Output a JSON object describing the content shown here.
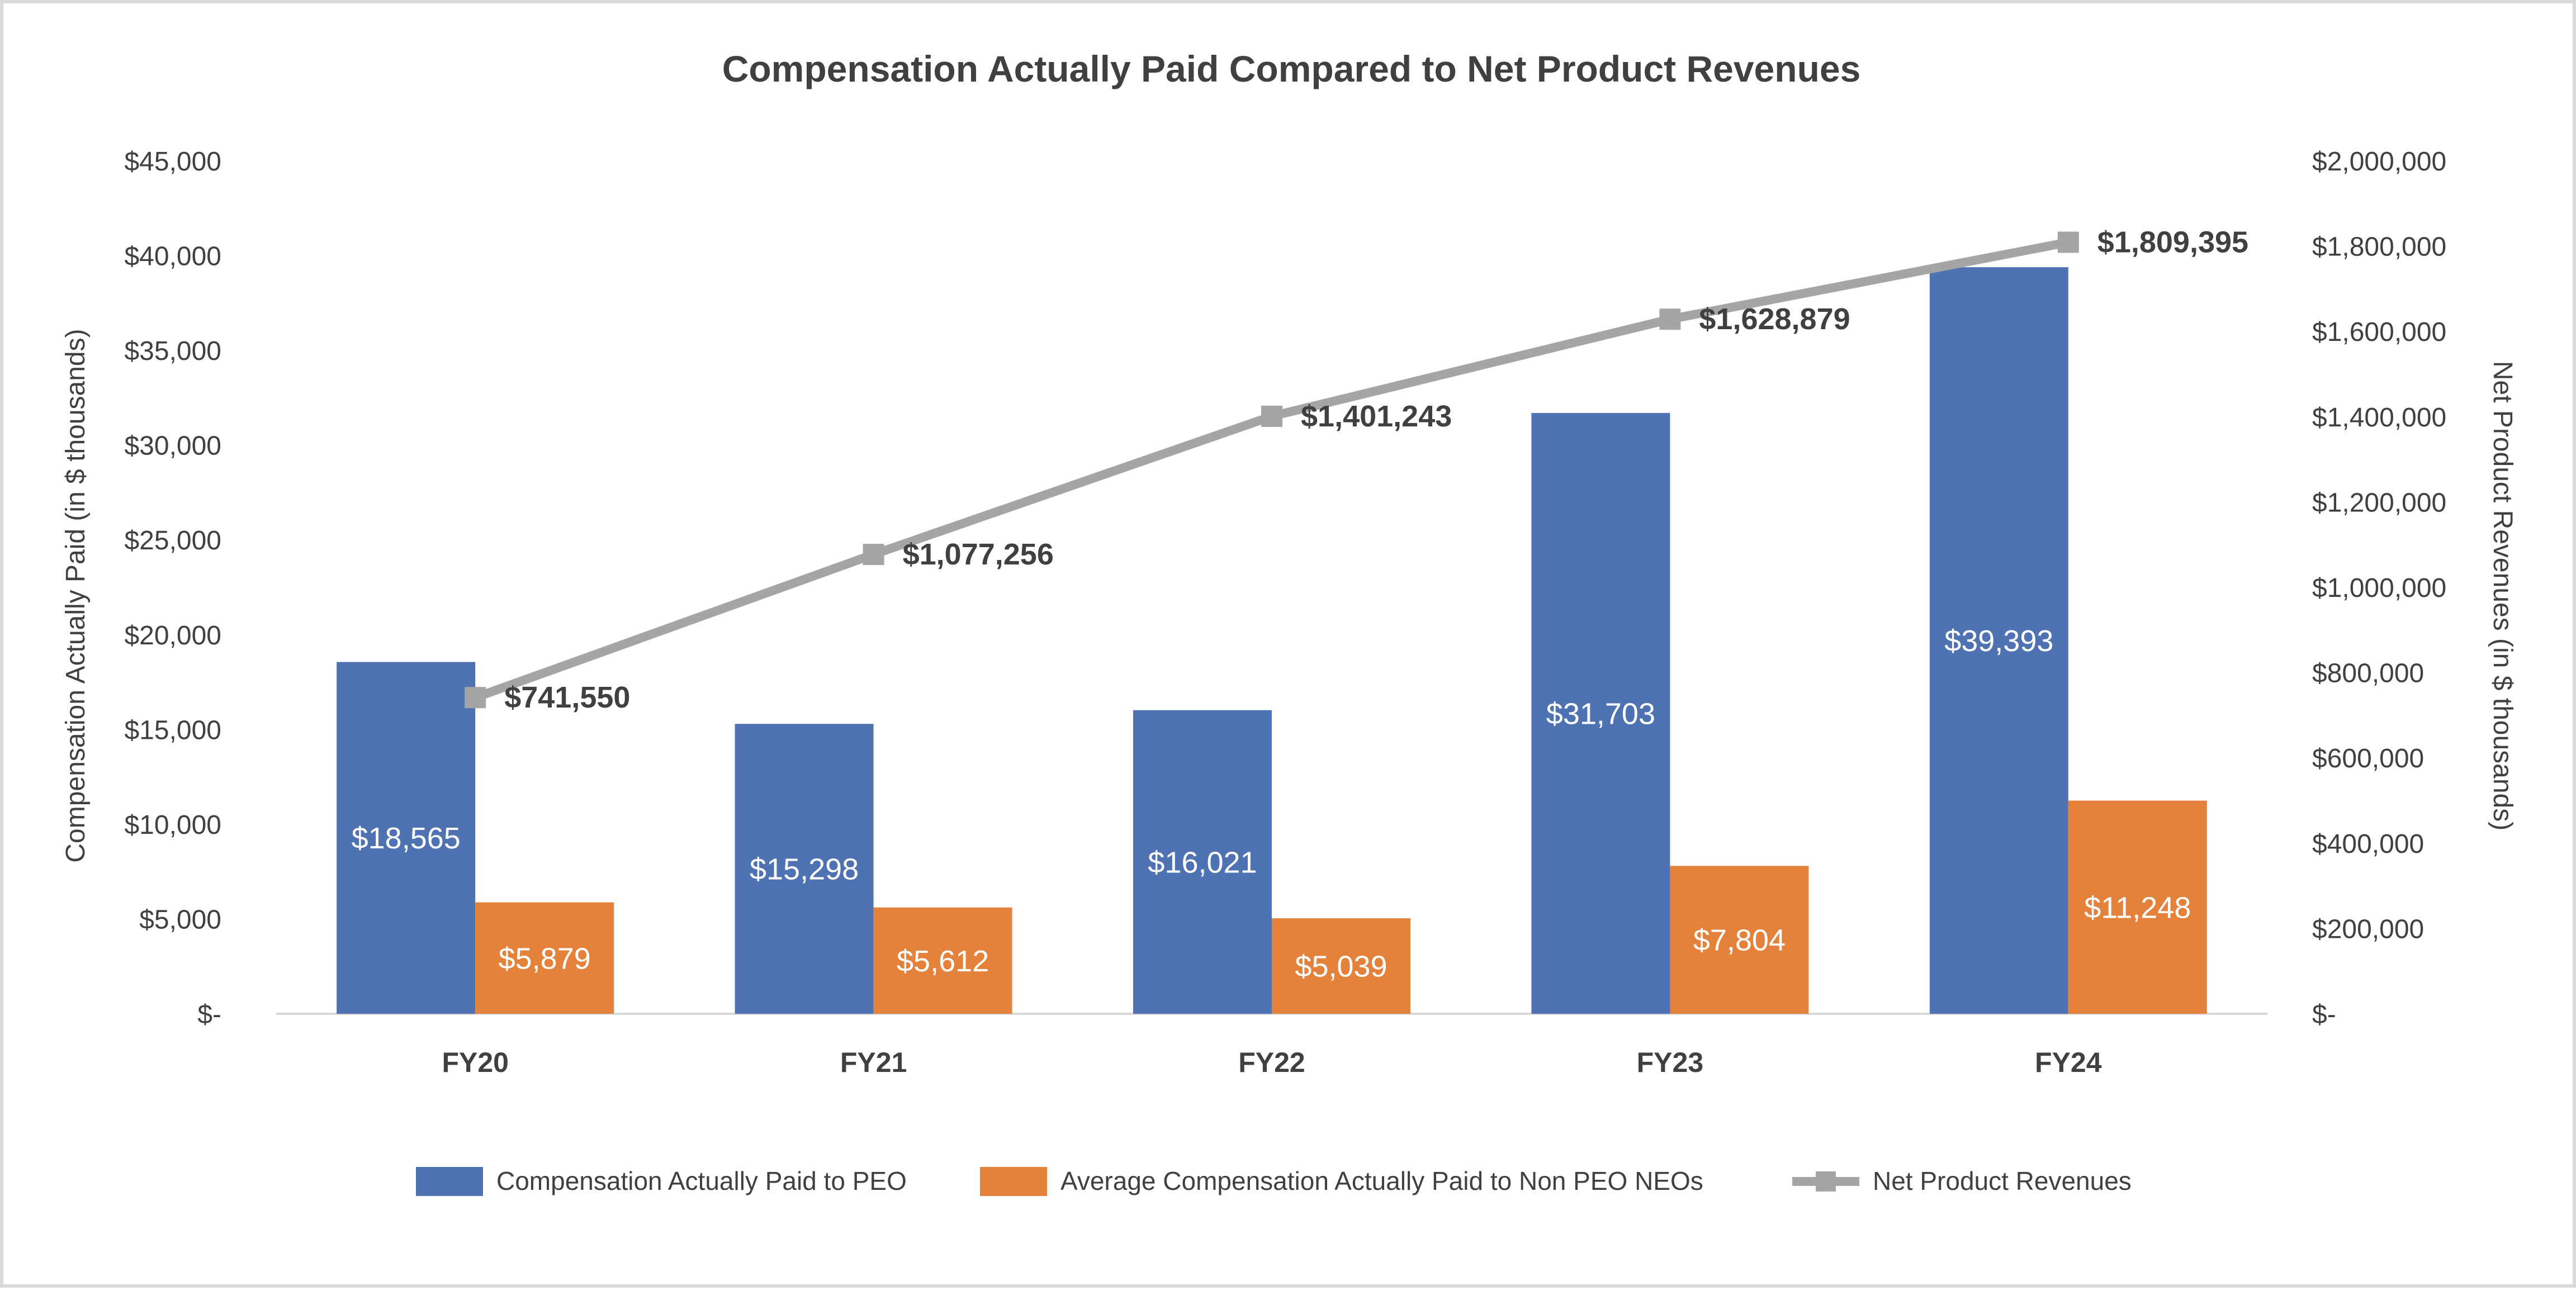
{
  "chart_data": {
    "type": "bar",
    "title": "Compensation Actually Paid Compared to Net Product Revenues",
    "categories": [
      "FY20",
      "FY21",
      "FY22",
      "FY23",
      "FY24"
    ],
    "series": [
      {
        "name": "Compensation Actually Paid to PEO",
        "kind": "bar",
        "axis": "left",
        "color": "#4F72B2",
        "values": [
          18565,
          15298,
          16021,
          31703,
          39393
        ],
        "labels": [
          "$18,565",
          "$15,298",
          "$16,021",
          "$31,703",
          "$39,393"
        ]
      },
      {
        "name": "Average Compensation Actually Paid to Non PEO NEOs",
        "kind": "bar",
        "axis": "left",
        "color": "#E4823C",
        "values": [
          5879,
          5612,
          5039,
          7804,
          11248
        ],
        "labels": [
          "$5,879",
          "$5,612",
          "$5,039",
          "$7,804",
          "$11,248"
        ]
      },
      {
        "name": "Net Product Revenues",
        "kind": "line",
        "axis": "right",
        "color": "#A5A5A5",
        "marker": "square",
        "values": [
          741550,
          1077256,
          1401243,
          1628879,
          1809395
        ],
        "labels": [
          "$741,550",
          "$1,077,256",
          "$1,401,243",
          "$1,628,879",
          "$1,809,395"
        ]
      }
    ],
    "ylabel": "Compensation Actually Paid (in $ thousands)",
    "y2label": "Net Product Revenues (in $ thousands)",
    "ylim": [
      0,
      45000
    ],
    "y2lim": [
      0,
      2000000
    ],
    "yticks": [
      0,
      5000,
      10000,
      15000,
      20000,
      25000,
      30000,
      35000,
      40000,
      45000
    ],
    "ytick_labels": [
      "$-",
      "$5,000",
      "$10,000",
      "$15,000",
      "$20,000",
      "$25,000",
      "$30,000",
      "$35,000",
      "$40,000",
      "$45,000"
    ],
    "y2ticks": [
      0,
      200000,
      400000,
      600000,
      800000,
      1000000,
      1200000,
      1400000,
      1600000,
      1800000,
      2000000
    ],
    "y2tick_labels": [
      "$-",
      "$200,000",
      "$400,000",
      "$600,000",
      "$800,000",
      "$1,000,000",
      "$1,200,000",
      "$1,400,000",
      "$1,600,000",
      "$1,800,000",
      "$2,000,000"
    ],
    "grid": false,
    "legend_position": "bottom"
  }
}
